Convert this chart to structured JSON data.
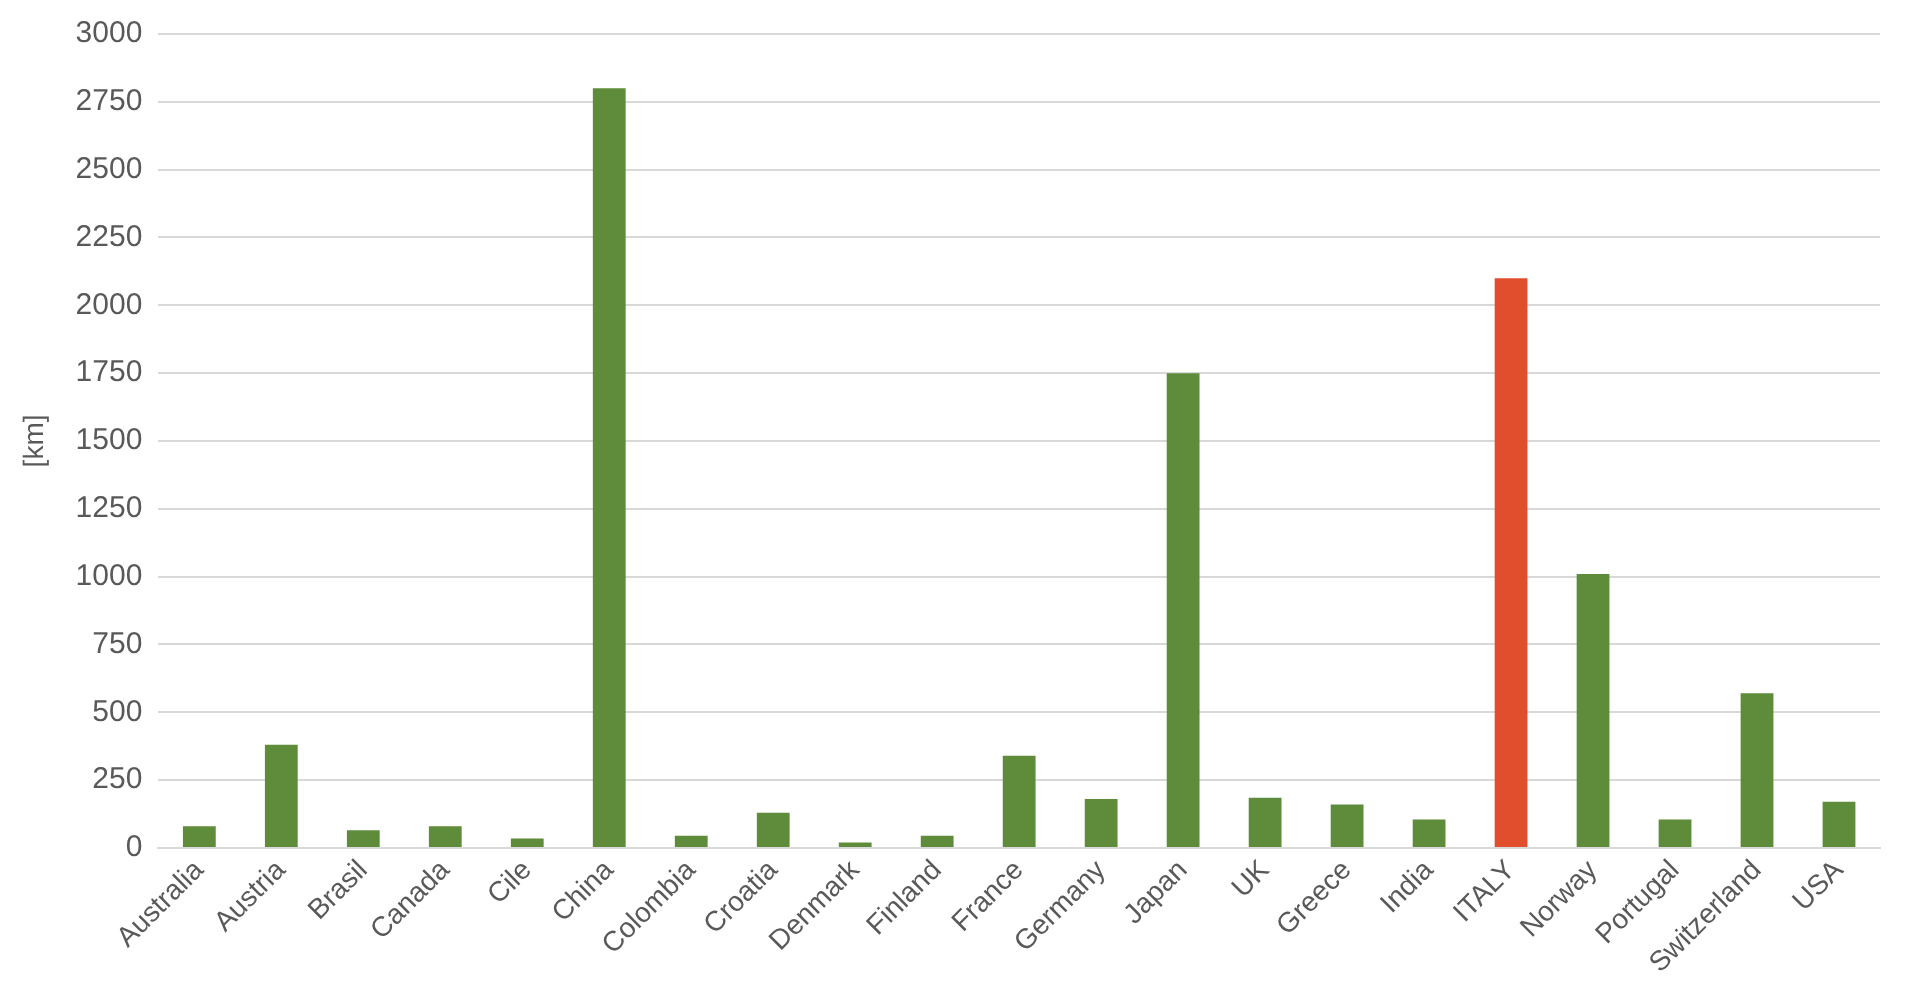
{
  "chart_data": {
    "type": "bar",
    "ylabel": "[km]",
    "categories": [
      "Australia",
      "Austria",
      "Brasil",
      "Canada",
      "Cile",
      "China",
      "Colombia",
      "Croatia",
      "Denmark",
      "Finland",
      "France",
      "Germany",
      "Japan",
      "UK",
      "Greece",
      "India",
      "ITALY",
      "Norway",
      "Portugal",
      "Switzerland",
      "USA"
    ],
    "values": [
      80,
      380,
      65,
      80,
      35,
      2800,
      45,
      130,
      20,
      45,
      340,
      180,
      1750,
      185,
      160,
      105,
      2100,
      1010,
      105,
      570,
      170
    ],
    "colors": [
      "#5e8c3a",
      "#5e8c3a",
      "#5e8c3a",
      "#5e8c3a",
      "#5e8c3a",
      "#5e8c3a",
      "#5e8c3a",
      "#5e8c3a",
      "#5e8c3a",
      "#5e8c3a",
      "#5e8c3a",
      "#5e8c3a",
      "#5e8c3a",
      "#5e8c3a",
      "#5e8c3a",
      "#5e8c3a",
      "#e04e2e",
      "#5e8c3a",
      "#5e8c3a",
      "#5e8c3a",
      "#5e8c3a"
    ],
    "ylim": [
      0,
      3000
    ],
    "yticks": [
      0,
      250,
      500,
      750,
      1000,
      1250,
      1500,
      1750,
      2000,
      2250,
      2500,
      2750,
      3000
    ],
    "grid": "y",
    "legend": false
  }
}
